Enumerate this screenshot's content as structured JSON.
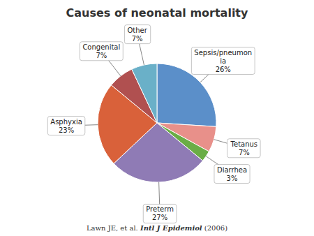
{
  "chart_data": {
    "type": "pie",
    "title": "Causes of neonatal mortality",
    "categories": [
      "Sepsis/pneumon\nia",
      "Tetanus",
      "Diarrhea",
      "Preterm",
      "Asphyxia",
      "Congenital",
      "Other"
    ],
    "values": [
      26,
      7,
      3,
      27,
      23,
      7,
      7
    ],
    "value_labels": [
      "26%",
      "7%",
      "3%",
      "27%",
      "23%",
      "7%",
      "7%"
    ],
    "colors": [
      "#5b8fc9",
      "#e8908a",
      "#6aad46",
      "#8f7bb5",
      "#d9613a",
      "#b05050",
      "#6ab0c8"
    ],
    "data_labels": true,
    "annotations": [
      "Lawn JE, et al. ",
      "Intl J Epidemiol",
      " (2006)"
    ]
  }
}
